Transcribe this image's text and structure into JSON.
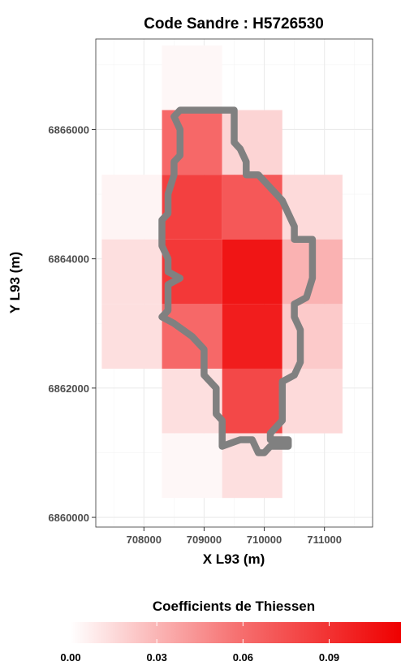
{
  "chart_data": {
    "type": "heatmap",
    "title": "Code Sandre : H5726530",
    "xlabel": "X L93 (m)",
    "ylabel": "Y L93 (m)",
    "xlim": [
      707200,
      711800
    ],
    "ylim": [
      6859850,
      6867400
    ],
    "x_ticks": [
      708000,
      709000,
      710000,
      711000
    ],
    "y_ticks": [
      6860000,
      6862000,
      6864000,
      6866000
    ],
    "cell_size": 1000,
    "grid": true,
    "legend": {
      "title": "Coefficients de Thiessen",
      "position": "bottom",
      "min": 0,
      "max": 0.115,
      "low_color": "#ffffff",
      "high_color": "#ef0000",
      "ticks": [
        {
          "value": 0,
          "label": "0.00"
        },
        {
          "value": 0.03,
          "label": "0.03"
        },
        {
          "value": 0.06,
          "label": "0.06"
        },
        {
          "value": 0.09,
          "label": "0.09"
        }
      ]
    },
    "cells": [
      {
        "x": 708800,
        "y": 6866800,
        "value": 0.002
      },
      {
        "x": 708800,
        "y": 6865800,
        "value": 0.062
      },
      {
        "x": 708800,
        "y": 6864800,
        "value": 0.082
      },
      {
        "x": 708800,
        "y": 6863800,
        "value": 0.086
      },
      {
        "x": 708800,
        "y": 6862800,
        "value": 0.062
      },
      {
        "x": 708800,
        "y": 6861800,
        "value": 0.01
      },
      {
        "x": 708800,
        "y": 6860800,
        "value": 0.002
      },
      {
        "x": 709800,
        "y": 6865800,
        "value": 0.014
      },
      {
        "x": 709800,
        "y": 6864800,
        "value": 0.07
      },
      {
        "x": 709800,
        "y": 6863800,
        "value": 0.104
      },
      {
        "x": 709800,
        "y": 6862800,
        "value": 0.1
      },
      {
        "x": 709800,
        "y": 6861800,
        "value": 0.078
      },
      {
        "x": 709800,
        "y": 6860800,
        "value": 0.01
      },
      {
        "x": 707800,
        "y": 6864800,
        "value": 0.003
      },
      {
        "x": 707800,
        "y": 6863800,
        "value": 0.01
      },
      {
        "x": 707800,
        "y": 6862800,
        "value": 0.01
      },
      {
        "x": 710800,
        "y": 6864800,
        "value": 0.012
      },
      {
        "x": 710800,
        "y": 6863800,
        "value": 0.028
      },
      {
        "x": 710800,
        "y": 6862800,
        "value": 0.018
      },
      {
        "x": 710800,
        "y": 6861800,
        "value": 0.012
      }
    ],
    "outline": [
      [
        708600,
        6866300
      ],
      [
        709500,
        6866300
      ],
      [
        709500,
        6865800
      ],
      [
        709600,
        6865700
      ],
      [
        709700,
        6865500
      ],
      [
        709700,
        6865300
      ],
      [
        709900,
        6865300
      ],
      [
        710000,
        6865200
      ],
      [
        710200,
        6865000
      ],
      [
        710300,
        6864900
      ],
      [
        710400,
        6864700
      ],
      [
        710500,
        6864500
      ],
      [
        710500,
        6864300
      ],
      [
        710800,
        6864300
      ],
      [
        710800,
        6864000
      ],
      [
        710800,
        6863700
      ],
      [
        710700,
        6863400
      ],
      [
        710500,
        6863300
      ],
      [
        710500,
        6863100
      ],
      [
        710600,
        6862900
      ],
      [
        710600,
        6862400
      ],
      [
        710500,
        6862200
      ],
      [
        710300,
        6862100
      ],
      [
        710300,
        6861500
      ],
      [
        710100,
        6861300
      ],
      [
        710100,
        6861200
      ],
      [
        710400,
        6861200
      ],
      [
        710400,
        6861100
      ],
      [
        710100,
        6861100
      ],
      [
        710000,
        6861000
      ],
      [
        709900,
        6861000
      ],
      [
        709800,
        6861200
      ],
      [
        709600,
        6861200
      ],
      [
        709300,
        6861100
      ],
      [
        709300,
        6861500
      ],
      [
        709200,
        6861600
      ],
      [
        709200,
        6862000
      ],
      [
        709000,
        6862200
      ],
      [
        709000,
        6862600
      ],
      [
        708800,
        6862800
      ],
      [
        708500,
        6863000
      ],
      [
        708300,
        6863100
      ],
      [
        708400,
        6863200
      ],
      [
        708400,
        6863600
      ],
      [
        708600,
        6863700
      ],
      [
        708400,
        6863800
      ],
      [
        708400,
        6864000
      ],
      [
        708300,
        6864200
      ],
      [
        708300,
        6864600
      ],
      [
        708400,
        6864700
      ],
      [
        708400,
        6865000
      ],
      [
        708500,
        6865300
      ],
      [
        708500,
        6865500
      ],
      [
        708600,
        6865600
      ],
      [
        708600,
        6866000
      ],
      [
        708500,
        6866200
      ]
    ]
  }
}
